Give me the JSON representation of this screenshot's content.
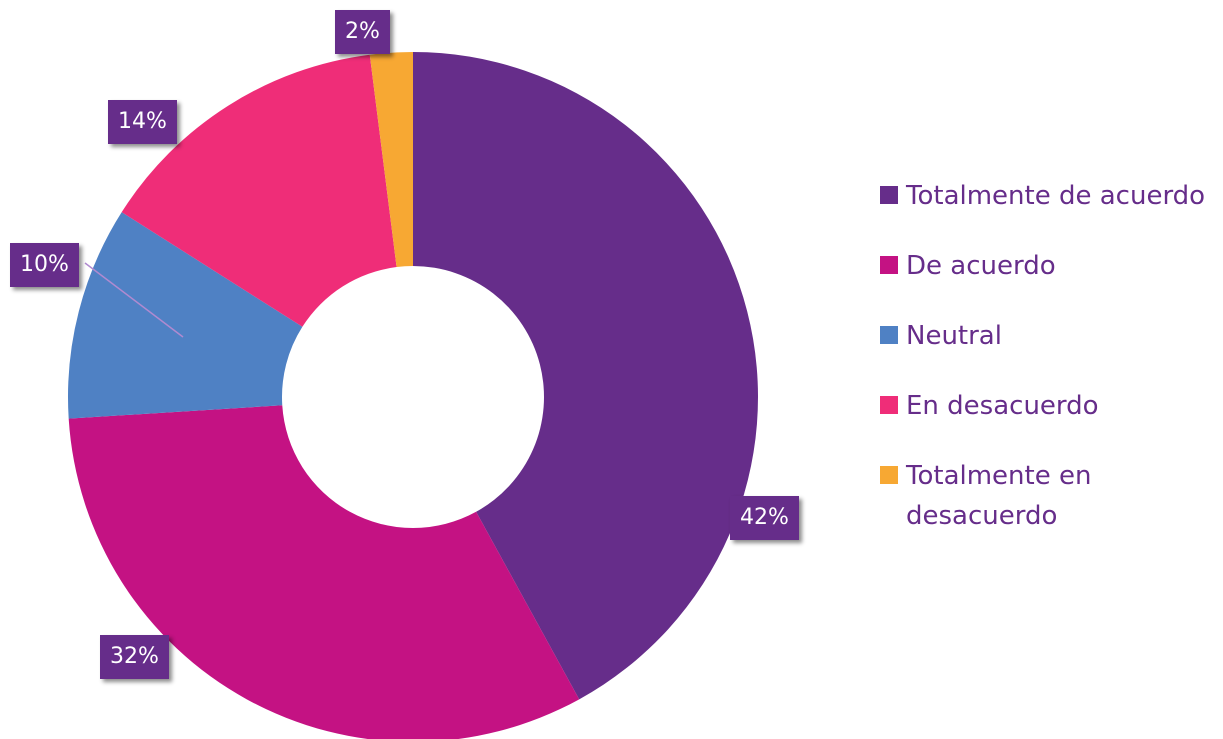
{
  "chart_data": {
    "type": "donut",
    "categories": [
      "Totalmente de acuerdo",
      "De acuerdo",
      "Neutral",
      "En desacuerdo",
      "Totalmente en desacuerdo"
    ],
    "values": [
      42,
      32,
      10,
      14,
      2
    ],
    "value_labels": [
      "42%",
      "32%",
      "10%",
      "14%",
      "2%"
    ],
    "colors": [
      "#662d8a",
      "#c41283",
      "#4f81c4",
      "#ef2d78",
      "#f7a833"
    ],
    "legend": "right"
  }
}
